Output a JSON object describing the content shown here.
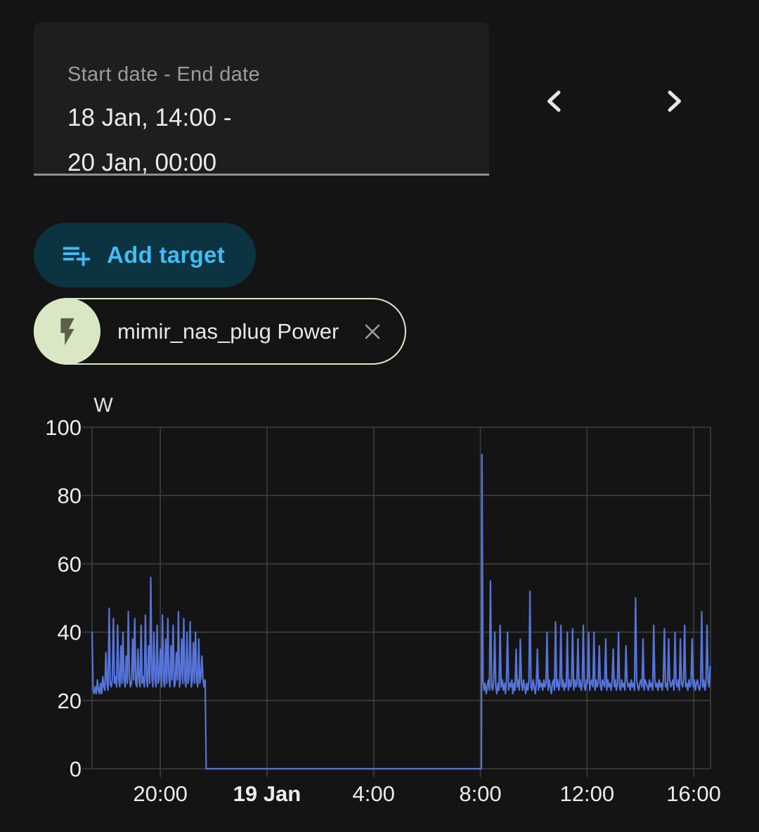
{
  "date_range_field": {
    "label": "Start date - End date",
    "value": "18 Jan, 14:00 -\n20 Jan, 00:00"
  },
  "nav": {
    "prev_icon": "chevron-left",
    "next_icon": "chevron-right"
  },
  "add_target": {
    "label": "Add target",
    "icon": "playlist-plus"
  },
  "target_chip": {
    "label": "mimir_nas_plug Power",
    "icon": "flash",
    "close_icon": "close"
  },
  "colors": {
    "background": "#141414",
    "field_background": "#1e1e1e",
    "accent_blue": "#3fbdf6",
    "button_background": "#0c3340",
    "chip_border": "#dbe9cb",
    "chip_avatar": "#d9e7c5",
    "chip_icon": "#5a604c",
    "series_blue": "#5674d9",
    "grid": "#3e3e3e",
    "axis_text": "#ededed"
  },
  "chart_data": {
    "type": "line",
    "title": "",
    "xlabel": "",
    "ylabel": "W",
    "unit": "W",
    "grid": true,
    "legend": "none",
    "ylim": [
      0,
      100
    ],
    "yticks": [
      0,
      20,
      40,
      60,
      80,
      100
    ],
    "t_start": 17.44,
    "t_end": 40.63,
    "xticks": [
      {
        "t": 20,
        "label": "20:00",
        "bold": false
      },
      {
        "t": 24,
        "label": "19 Jan",
        "bold": true
      },
      {
        "t": 28,
        "label": "4:00",
        "bold": false
      },
      {
        "t": 32,
        "label": "8:00",
        "bold": false
      },
      {
        "t": 36,
        "label": "12:00",
        "bold": false
      },
      {
        "t": 40,
        "label": "16:00",
        "bold": false
      }
    ],
    "series": [
      {
        "name": "mimir_nas_plug Power",
        "color": "#5674d9",
        "segments": [
          {
            "t0": 17.44,
            "dt": 0.04,
            "values": [
              40,
              23,
              22,
              24,
              22,
              26,
              23,
              22,
              25,
              22,
              27,
              24,
              23,
              34,
              25,
              23,
              47,
              25,
              24,
              26,
              44,
              25,
              27,
              24,
              42,
              26,
              24,
              36,
              25,
              40,
              26,
              24,
              33,
              25,
              46,
              27,
              24,
              25,
              38,
              26,
              44,
              25,
              24,
              35,
              26,
              24,
              42,
              25,
              27,
              24,
              45,
              26,
              24,
              36,
              25,
              56,
              27,
              24,
              40,
              26,
              24,
              42,
              25,
              27,
              35,
              24,
              45,
              26,
              24,
              38,
              25,
              44,
              27,
              24,
              36,
              26,
              42,
              24,
              25,
              34,
              26,
              46,
              24,
              27,
              38,
              25,
              44,
              26,
              24,
              40,
              25,
              27,
              43,
              24,
              26,
              37,
              25,
              40,
              26,
              24,
              38,
              25,
              27,
              33,
              26,
              24,
              26
            ]
          },
          {
            "t0": 21.72,
            "dt": 10.32,
            "values": [
              0,
              0
            ]
          },
          {
            "t0": 32.06,
            "dt": 0.04,
            "values": [
              92,
              26,
              23,
              25,
              22,
              24,
              26,
              23,
              55,
              24,
              23,
              26,
              40,
              24,
              22,
              25,
              23,
              42,
              24,
              26,
              23,
              25,
              22,
              26,
              40,
              23,
              25,
              24,
              26,
              22,
              25,
              23,
              35,
              24,
              26,
              23,
              38,
              25,
              23,
              26,
              24,
              22,
              25,
              23,
              26,
              52,
              24,
              23,
              26,
              24,
              22,
              25,
              35,
              23,
              26,
              24,
              25,
              23,
              26,
              24,
              25,
              40,
              23,
              26,
              24,
              22,
              25,
              26,
              23,
              43,
              24,
              26,
              23,
              25,
              42,
              24,
              26,
              23,
              25,
              24,
              40,
              23,
              26,
              24,
              25,
              41,
              23,
              26,
              24,
              25,
              38,
              24,
              26,
              23,
              25,
              42,
              24,
              23,
              26,
              25,
              40,
              23,
              25,
              26,
              24,
              40,
              23,
              26,
              24,
              25,
              36,
              24,
              23,
              26,
              25,
              24,
              38,
              23,
              26,
              24,
              25,
              23,
              26,
              35,
              24,
              26,
              23,
              25,
              40,
              24,
              23,
              26,
              24,
              25,
              23,
              36,
              26,
              24,
              25,
              23,
              26,
              24,
              25,
              23,
              50,
              26,
              24,
              23,
              25,
              26,
              24,
              38,
              23,
              26,
              25,
              24,
              23,
              26,
              24,
              25,
              23,
              42,
              26,
              24,
              25,
              23,
              26,
              24,
              25,
              23,
              26,
              41,
              24,
              25,
              23,
              38,
              26,
              24,
              25,
              26,
              23,
              40,
              25,
              24,
              26,
              23,
              38,
              25,
              24,
              26,
              42,
              24,
              25,
              23,
              26,
              24,
              25,
              38,
              24,
              26,
              23,
              25,
              26,
              24,
              23,
              25,
              46,
              24,
              26,
              23,
              25,
              42,
              26,
              24,
              30
            ]
          }
        ]
      }
    ]
  }
}
